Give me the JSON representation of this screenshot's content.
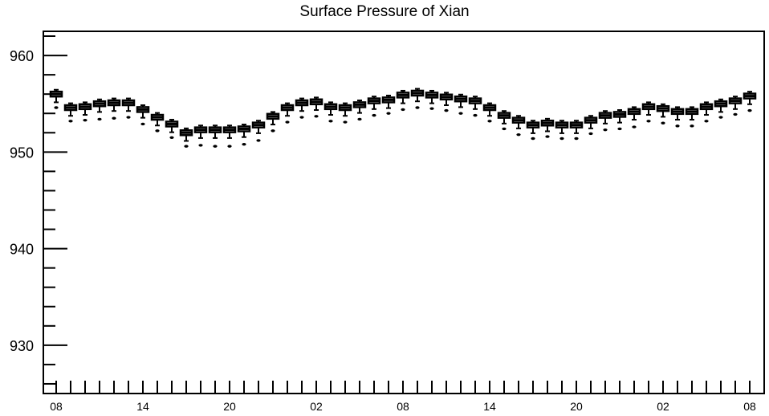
{
  "chart_data": {
    "type": "box",
    "title": "Surface Pressure of Xian",
    "xlabel": "",
    "ylabel": "",
    "ylim": [
      925,
      962.5
    ],
    "y_ticks": [
      930,
      940,
      950,
      960
    ],
    "x_tick_labels": [
      "08",
      "14",
      "20",
      "02",
      "08",
      "14",
      "20",
      "02",
      "08"
    ],
    "x_tick_index": [
      0,
      6,
      12,
      18,
      24,
      30,
      36,
      42,
      48
    ],
    "grid": false,
    "series": [
      {
        "medians": [
          956.0,
          954.6,
          954.7,
          955.0,
          955.1,
          955.1,
          954.4,
          953.6,
          952.9,
          952.0,
          952.3,
          952.3,
          952.3,
          952.4,
          952.8,
          953.7,
          954.6,
          955.1,
          955.2,
          954.7,
          954.6,
          954.9,
          955.3,
          955.4,
          955.9,
          956.1,
          955.9,
          955.7,
          955.5,
          955.3,
          954.6,
          953.8,
          953.3,
          952.8,
          953.0,
          952.8,
          952.8,
          953.3,
          953.8,
          953.9,
          954.2,
          954.7,
          954.5,
          954.2,
          954.2,
          954.7,
          955.0,
          955.3,
          955.8
        ],
        "outliers": [
          954.6,
          953.2,
          953.3,
          953.4,
          953.5,
          953.6,
          952.9,
          952.2,
          951.5,
          950.6,
          950.7,
          950.6,
          950.6,
          950.8,
          951.2,
          952.2,
          953.1,
          953.6,
          953.7,
          953.2,
          953.1,
          953.4,
          953.8,
          954.0,
          954.4,
          954.6,
          954.5,
          954.3,
          954.0,
          953.8,
          953.2,
          952.4,
          951.8,
          951.4,
          951.6,
          951.4,
          951.4,
          951.9,
          952.3,
          952.4,
          952.6,
          953.2,
          953.0,
          952.7,
          952.7,
          953.2,
          953.6,
          953.9,
          954.3
        ]
      }
    ]
  }
}
